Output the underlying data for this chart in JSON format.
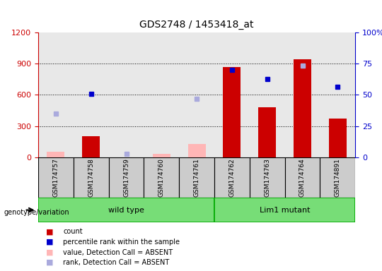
{
  "title": "GDS2748 / 1453418_at",
  "samples": [
    "GSM174757",
    "GSM174758",
    "GSM174759",
    "GSM174760",
    "GSM174761",
    "GSM174762",
    "GSM174763",
    "GSM174764",
    "GSM174891"
  ],
  "groups": [
    {
      "label": "wild type",
      "start": 0,
      "end": 4,
      "color": "#90EE90"
    },
    {
      "label": "Lim1 mutant",
      "start": 5,
      "end": 8,
      "color": "#90EE90"
    }
  ],
  "count_values": [
    null,
    200,
    null,
    null,
    null,
    870,
    480,
    940,
    370
  ],
  "count_absent_values": [
    55,
    null,
    null,
    30,
    130,
    null,
    null,
    null,
    null
  ],
  "percentile_values": [
    null,
    610,
    null,
    null,
    null,
    840,
    750,
    null,
    680
  ],
  "percentile_absent_values": [
    420,
    null,
    30,
    null,
    560,
    null,
    null,
    880,
    null
  ],
  "ylim_left": [
    0,
    1200
  ],
  "ylim_right": [
    0,
    100
  ],
  "yticks_left": [
    0,
    300,
    600,
    900,
    1200
  ],
  "yticks_right": [
    0,
    25,
    50,
    75,
    100
  ],
  "bar_color": "#CC0000",
  "absent_bar_color": "#FFB6B6",
  "dot_color": "#0000CC",
  "absent_dot_color": "#AAAADD",
  "tick_color_left": "#CC0000",
  "tick_color_right": "#0000CC",
  "col_bg": "#CCCCCC",
  "group_color": "#77DD77",
  "group_border": "#00AA00",
  "legend_items": [
    {
      "color": "#CC0000",
      "label": "count"
    },
    {
      "color": "#0000CC",
      "label": "percentile rank within the sample"
    },
    {
      "color": "#FFB6B6",
      "label": "value, Detection Call = ABSENT"
    },
    {
      "color": "#AAAADD",
      "label": "rank, Detection Call = ABSENT"
    }
  ]
}
